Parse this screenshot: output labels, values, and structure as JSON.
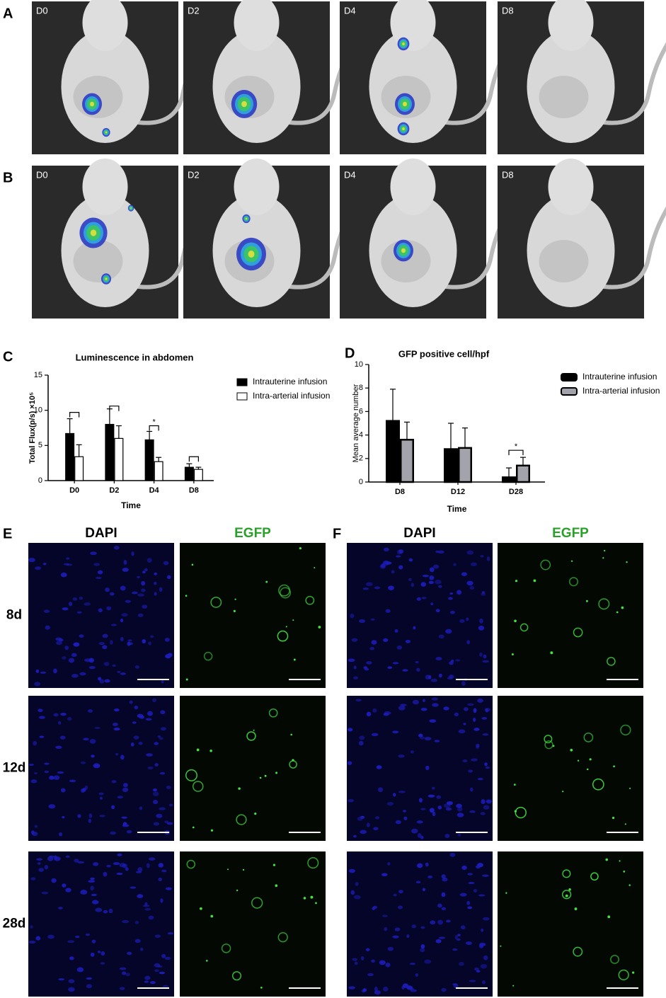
{
  "imaging": [
    {
      "panel": "A",
      "days": [
        "D0",
        "D2",
        "D4",
        "D8"
      ]
    },
    {
      "panel": "B",
      "days": [
        "D0",
        "D2",
        "D4",
        "D8"
      ]
    }
  ],
  "chart_data": [
    {
      "type": "bar",
      "panel": "C",
      "title": "Luminescence in abdomen",
      "xlabel": "Time",
      "ylabel": "Total Flux(p/s) ×10⁵",
      "categories": [
        "D0",
        "D2",
        "D4",
        "D8"
      ],
      "series": [
        {
          "name": "Intrauterine infusion",
          "color": "#000000",
          "values": [
            6.7,
            8.0,
            5.8,
            1.9
          ],
          "errors": [
            2.1,
            2.2,
            1.2,
            0.5
          ]
        },
        {
          "name": "Intra-arterial infusion",
          "color": "#ffffff",
          "values": [
            3.4,
            6.0,
            2.7,
            1.6
          ],
          "errors": [
            1.7,
            1.8,
            0.6,
            0.3
          ]
        }
      ],
      "ylim": [
        0,
        15
      ],
      "yticks": [
        0,
        5,
        10,
        15
      ],
      "brackets": [
        {
          "index": 0,
          "y": 9.7
        },
        {
          "index": 1,
          "y": 10.6
        },
        {
          "index": 2,
          "y": 7.8,
          "label": "*"
        },
        {
          "index": 3,
          "y": 3.4
        }
      ]
    },
    {
      "type": "bar",
      "panel": "D",
      "title": "GFP positive cell/hpf",
      "xlabel": "Time",
      "ylabel": "Mean average number",
      "categories": [
        "D8",
        "D12",
        "D28"
      ],
      "series": [
        {
          "name": "Intrauterine infusion",
          "color": "#000000",
          "values": [
            5.2,
            2.8,
            0.4
          ],
          "errors": [
            2.7,
            2.2,
            0.8
          ]
        },
        {
          "name": "Intra-arterial infusion",
          "color": "#a3a3ab",
          "values": [
            3.6,
            2.9,
            1.4
          ],
          "errors": [
            1.5,
            1.7,
            0.7
          ]
        }
      ],
      "ylim": [
        0,
        10
      ],
      "yticks": [
        0,
        2,
        4,
        6,
        8,
        10
      ],
      "brackets": [
        {
          "index": 2,
          "y": 2.7,
          "label": "*"
        }
      ]
    }
  ],
  "microscopy": [
    {
      "panel": "E",
      "channels": [
        "DAPI",
        "EGFP"
      ],
      "timepoints": [
        "8d",
        "12d",
        "28d"
      ]
    },
    {
      "panel": "F",
      "channels": [
        "DAPI",
        "EGFP"
      ]
    }
  ]
}
